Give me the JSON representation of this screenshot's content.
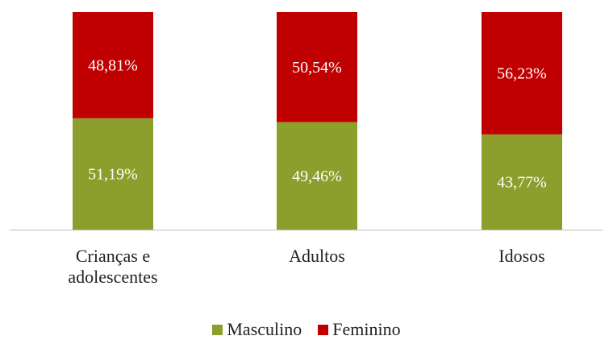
{
  "chart_data": {
    "type": "stacked_bar",
    "categories": [
      "Crianças e adolescentes",
      "Adultos",
      "Idosos"
    ],
    "series": [
      {
        "name": "Masculino",
        "color": "#8c9e2b",
        "values": [
          51.19,
          49.46,
          43.77
        ],
        "value_labels": [
          "51,19%",
          "49,46%",
          "43,77%"
        ]
      },
      {
        "name": "Feminino",
        "color": "#c00000",
        "values": [
          48.81,
          50.54,
          56.23
        ],
        "value_labels": [
          "48,81%",
          "50,54%",
          "56,23%"
        ]
      }
    ],
    "legend": "bottom"
  }
}
